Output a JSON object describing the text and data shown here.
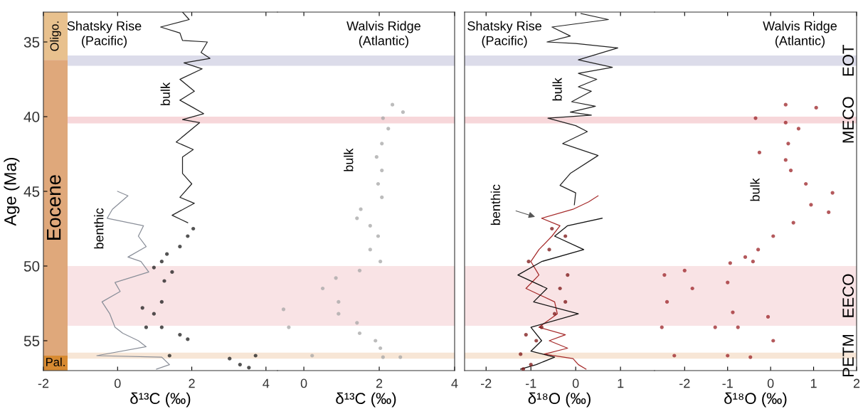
{
  "chart_data": [
    {
      "type": "line",
      "xlabel": "δ¹³C (‰)",
      "ylabel": "Age (Ma)",
      "xlim": [
        -2,
        4.31
      ],
      "xticks": [
        -2,
        0,
        2,
        4
      ],
      "ylim": [
        57,
        33
      ],
      "yticks": [
        35,
        40,
        45,
        50,
        55
      ],
      "annotations": [
        "Shatsky Rise\n(Pacific)",
        "bulk",
        "benthic"
      ],
      "bands": [
        {
          "axis": "y",
          "from": 33,
          "to": 36.2,
          "label": "Oligo.",
          "color": "#e8c18e"
        },
        {
          "axis": "y",
          "from": 36.2,
          "to": 56.0,
          "label": "Eocene",
          "color": "#dfa87b"
        },
        {
          "axis": "y",
          "from": 56.0,
          "to": 57,
          "label": "Pal.",
          "color": "#d78a32"
        },
        {
          "axis": "y",
          "from": 35.9,
          "to": 36.6,
          "color": "#dcdcea"
        },
        {
          "axis": "y",
          "from": 40.0,
          "to": 40.45,
          "color": "#f7d7da"
        },
        {
          "axis": "y",
          "from": 50.0,
          "to": 54.0,
          "color": "#f9e3e5"
        },
        {
          "axis": "y",
          "from": 55.8,
          "to": 56.2,
          "color": "#f7e6d6"
        }
      ],
      "series": [
        {
          "color": "#8a8f99",
          "x": [
            0.0,
            0.28,
            -0.14,
            -0.28,
            0.7,
            0.56,
            0.77,
            0.28,
            0.63,
            0.84,
            -0.07,
            0.07,
            -0.42,
            -0.21,
            -0.07,
            0.14,
            0.56,
            0.77,
            -0.56,
            1.19,
            1.4,
            1.05
          ],
          "values": [
            45.0,
            45.3,
            46.2,
            46.8,
            47.3,
            48.0,
            48.7,
            49.4,
            49.7,
            50.4,
            51.1,
            51.7,
            52.4,
            53.2,
            54.1,
            54.5,
            55.0,
            55.4,
            56.0,
            56.1,
            56.6,
            56.9
          ]
        },
        {
          "color": "#222222",
          "x": [
            1.75,
            1.93,
            1.16,
            1.68,
            1.75,
            2.42,
            2.25,
            2.49,
            1.79,
            2.28,
            1.68,
            2.07,
            1.68,
            2.04,
            2.32,
            1.75,
            2.21,
            1.58,
            2.04,
            1.75,
            1.75,
            2.0,
            1.68,
            2.07,
            1.47,
            1.89
          ],
          "values": [
            33.0,
            33.5,
            34.0,
            34.4,
            34.9,
            35.0,
            35.7,
            36.1,
            36.4,
            36.8,
            37.5,
            38.3,
            38.9,
            39.4,
            39.8,
            40.2,
            40.4,
            41.7,
            42.2,
            42.7,
            43.8,
            44.5,
            45.4,
            45.8,
            46.6,
            47.1
          ]
        },
        {
          "type": "scatter",
          "marker": "circle",
          "color": "#1a1a1a",
          "x": [
            2.04,
            1.89,
            1.68,
            1.33,
            1.19,
            0.98,
            1.47,
            1.26,
            1.19,
            0.67,
            0.98,
            0.77,
            1.19,
            1.68,
            1.89,
            1.4,
            3.72,
            3.02,
            3.3,
            3.54
          ],
          "values": [
            47.5,
            48.0,
            48.7,
            49.2,
            49.7,
            50.1,
            50.4,
            51.0,
            52.4,
            52.8,
            53.2,
            54.1,
            54.1,
            54.6,
            54.9,
            56.0,
            56.0,
            56.2,
            56.6,
            56.8
          ]
        }
      ]
    },
    {
      "type": "scatter",
      "xlabel": "δ¹³C (‰)",
      "xlim": [
        -0.7,
        4
      ],
      "xticks": [
        0,
        2,
        4
      ],
      "ylim": [
        57,
        33
      ],
      "tick_labels": "x",
      "annotations": [
        "Walvis Ridge\n(Atlantic)",
        "bulk"
      ],
      "bands": [
        {
          "axis": "y",
          "from": 35.9,
          "to": 36.6,
          "color": "#dcdcea"
        },
        {
          "axis": "y",
          "from": 40.0,
          "to": 40.45,
          "color": "#f7d7da"
        },
        {
          "axis": "y",
          "from": 50.0,
          "to": 54.0,
          "color": "#f9e3e5"
        },
        {
          "axis": "y",
          "from": 55.8,
          "to": 56.2,
          "color": "#f7e6d6"
        }
      ],
      "series": [
        {
          "marker": "circle",
          "color": "#a6a6a6",
          "x": [
            2.35,
            2.63,
            2.1,
            2.24,
            2.07,
            1.93,
            2.07,
            1.97,
            2.07,
            1.51,
            1.41,
            1.76,
            1.97,
            1.76,
            2.03,
            1.48,
            0.85,
            0.5,
            0.92,
            -0.54,
            0.92,
            1.41,
            -0.4,
            1.48,
            1.9,
            2.03,
            0.22,
            2.1,
            2.56
          ],
          "values": [
            39.2,
            39.7,
            40.1,
            40.8,
            41.8,
            42.7,
            43.6,
            44.5,
            45.4,
            46.2,
            46.8,
            47.3,
            48.0,
            48.9,
            49.7,
            50.3,
            50.8,
            51.5,
            52.4,
            52.9,
            53.2,
            53.8,
            54.1,
            54.5,
            55.0,
            55.5,
            56.0,
            56.1,
            56.1
          ]
        }
      ]
    },
    {
      "type": "line",
      "xlabel": "δ¹⁸O (‰)",
      "xlim": [
        -2.48,
        1.76
      ],
      "xticks": [
        -2,
        -1,
        0,
        1
      ],
      "ylim": [
        57,
        33
      ],
      "tick_labels": "x",
      "annotations": [
        "Shatsky Rise\n(Pacific)",
        "bulk",
        "benthic"
      ],
      "bands": [
        {
          "axis": "y",
          "from": 35.9,
          "to": 36.6,
          "color": "#dcdcea"
        },
        {
          "axis": "y",
          "from": 40.0,
          "to": 40.45,
          "color": "#f7d7da"
        },
        {
          "axis": "y",
          "from": 50.0,
          "to": 54.0,
          "color": "#f9e3e5"
        },
        {
          "axis": "y",
          "from": 55.8,
          "to": 56.2,
          "color": "#f7e6d6"
        }
      ],
      "series": [
        {
          "color": "#222222",
          "x": [
            0.12,
            0.73,
            -0.53,
            -0.12,
            -0.64,
            0.0,
            0.94,
            0.06,
            0.82,
            0.06,
            0.47,
            0.06,
            0.35,
            -0.09,
            0.44,
            -0.12,
            0.35,
            -0.62,
            0.0,
            0.26,
            -0.29,
            0.5,
            -0.12,
            -0.35,
            0.0,
            -0.03
          ],
          "values": [
            33.1,
            33.5,
            34.0,
            34.6,
            35.0,
            35.1,
            35.4,
            36.2,
            36.7,
            37.1,
            37.5,
            38.0,
            38.3,
            39.0,
            39.3,
            39.7,
            39.9,
            40.1,
            40.6,
            41.0,
            41.8,
            42.6,
            43.8,
            44.6,
            45.1,
            45.9
          ]
        },
        {
          "color": "#a52a2a",
          "x": [
            0.5,
            0.29,
            -0.06,
            -0.76,
            -0.35,
            -0.53,
            -0.82,
            -1.0,
            -0.82,
            -1.11,
            -0.47,
            -0.41,
            -0.82,
            -0.23,
            -0.59,
            -0.18,
            -0.7,
            -0.06,
            0.06,
            0.23
          ],
          "values": [
            45.3,
            45.7,
            46.2,
            46.8,
            47.3,
            48.0,
            48.9,
            49.7,
            50.6,
            51.5,
            52.4,
            53.2,
            54.1,
            54.6,
            55.0,
            55.5,
            55.9,
            56.2,
            56.6,
            56.9
          ]
        },
        {
          "color": "#111111",
          "x": [
            0.59,
            -0.18,
            -0.47,
            0.18,
            -0.76,
            -1.29,
            -0.64,
            -0.94,
            0.06,
            -1.0,
            -0.76,
            -1.0,
            -0.47,
            -0.88,
            -1.23
          ],
          "values": [
            46.8,
            47.3,
            48.0,
            48.9,
            49.7,
            50.6,
            51.5,
            52.4,
            53.2,
            54.1,
            55.0,
            55.7,
            56.1,
            56.6,
            56.9
          ]
        },
        {
          "type": "scatter",
          "marker": "circle",
          "color": "#7a1212",
          "x": [
            -0.53,
            -0.23,
            -0.59,
            -1.05,
            -0.18,
            -0.35,
            -0.23,
            -0.47,
            -0.76,
            -1.11,
            -0.88,
            -1.23,
            -1.0,
            -1.17
          ],
          "values": [
            47.5,
            48.0,
            48.9,
            49.7,
            50.6,
            51.5,
            52.4,
            53.2,
            54.1,
            54.6,
            55.0,
            55.9,
            56.6,
            56.9
          ]
        }
      ]
    },
    {
      "type": "scatter",
      "xlabel": "δ¹⁸O (‰)",
      "xlim": [
        -2.7,
        2
      ],
      "xticks": [
        -2,
        -1,
        0,
        1,
        2
      ],
      "ylim": [
        57,
        33
      ],
      "tick_labels": "x",
      "annotations": [
        "Walvis Ridge\n(Atlantic)",
        "bulk"
      ],
      "bands": [
        {
          "axis": "y",
          "from": 35.9,
          "to": 36.6,
          "label": "EOT",
          "color": "#dcdcea"
        },
        {
          "axis": "y",
          "from": 40.0,
          "to": 40.45,
          "label": "MECO",
          "color": "#f7d7da"
        },
        {
          "axis": "y",
          "from": 50.0,
          "to": 54.0,
          "label": "EECO",
          "color": "#f9e3e5"
        },
        {
          "axis": "y",
          "from": 55.8,
          "to": 56.2,
          "label": "PETM",
          "color": "#f7e6d6"
        }
      ],
      "series": [
        {
          "marker": "circle",
          "color": "#9b2226",
          "x": [
            0.35,
            1.06,
            -0.35,
            0.35,
            0.65,
            0.41,
            -0.26,
            0.35,
            0.47,
            0.82,
            1.44,
            0.94,
            1.35,
            0.53,
            0.06,
            -0.29,
            -0.59,
            -0.41,
            -0.94,
            -2.0,
            -2.47,
            -1.0,
            -1.82,
            -2.41,
            -0.88,
            -0.06,
            -2.53,
            -1.29,
            -0.76,
            0.06,
            -2.24,
            -1.0,
            -0.47
          ],
          "values": [
            39.2,
            39.4,
            40.1,
            40.4,
            40.8,
            41.8,
            42.4,
            42.9,
            43.6,
            44.5,
            45.1,
            45.9,
            46.4,
            47.1,
            48.0,
            48.9,
            49.4,
            49.7,
            49.8,
            50.3,
            50.6,
            51.1,
            51.5,
            52.4,
            53.1,
            53.4,
            54.1,
            54.1,
            54.1,
            55.0,
            56.0,
            56.0,
            56.1
          ]
        }
      ]
    }
  ]
}
